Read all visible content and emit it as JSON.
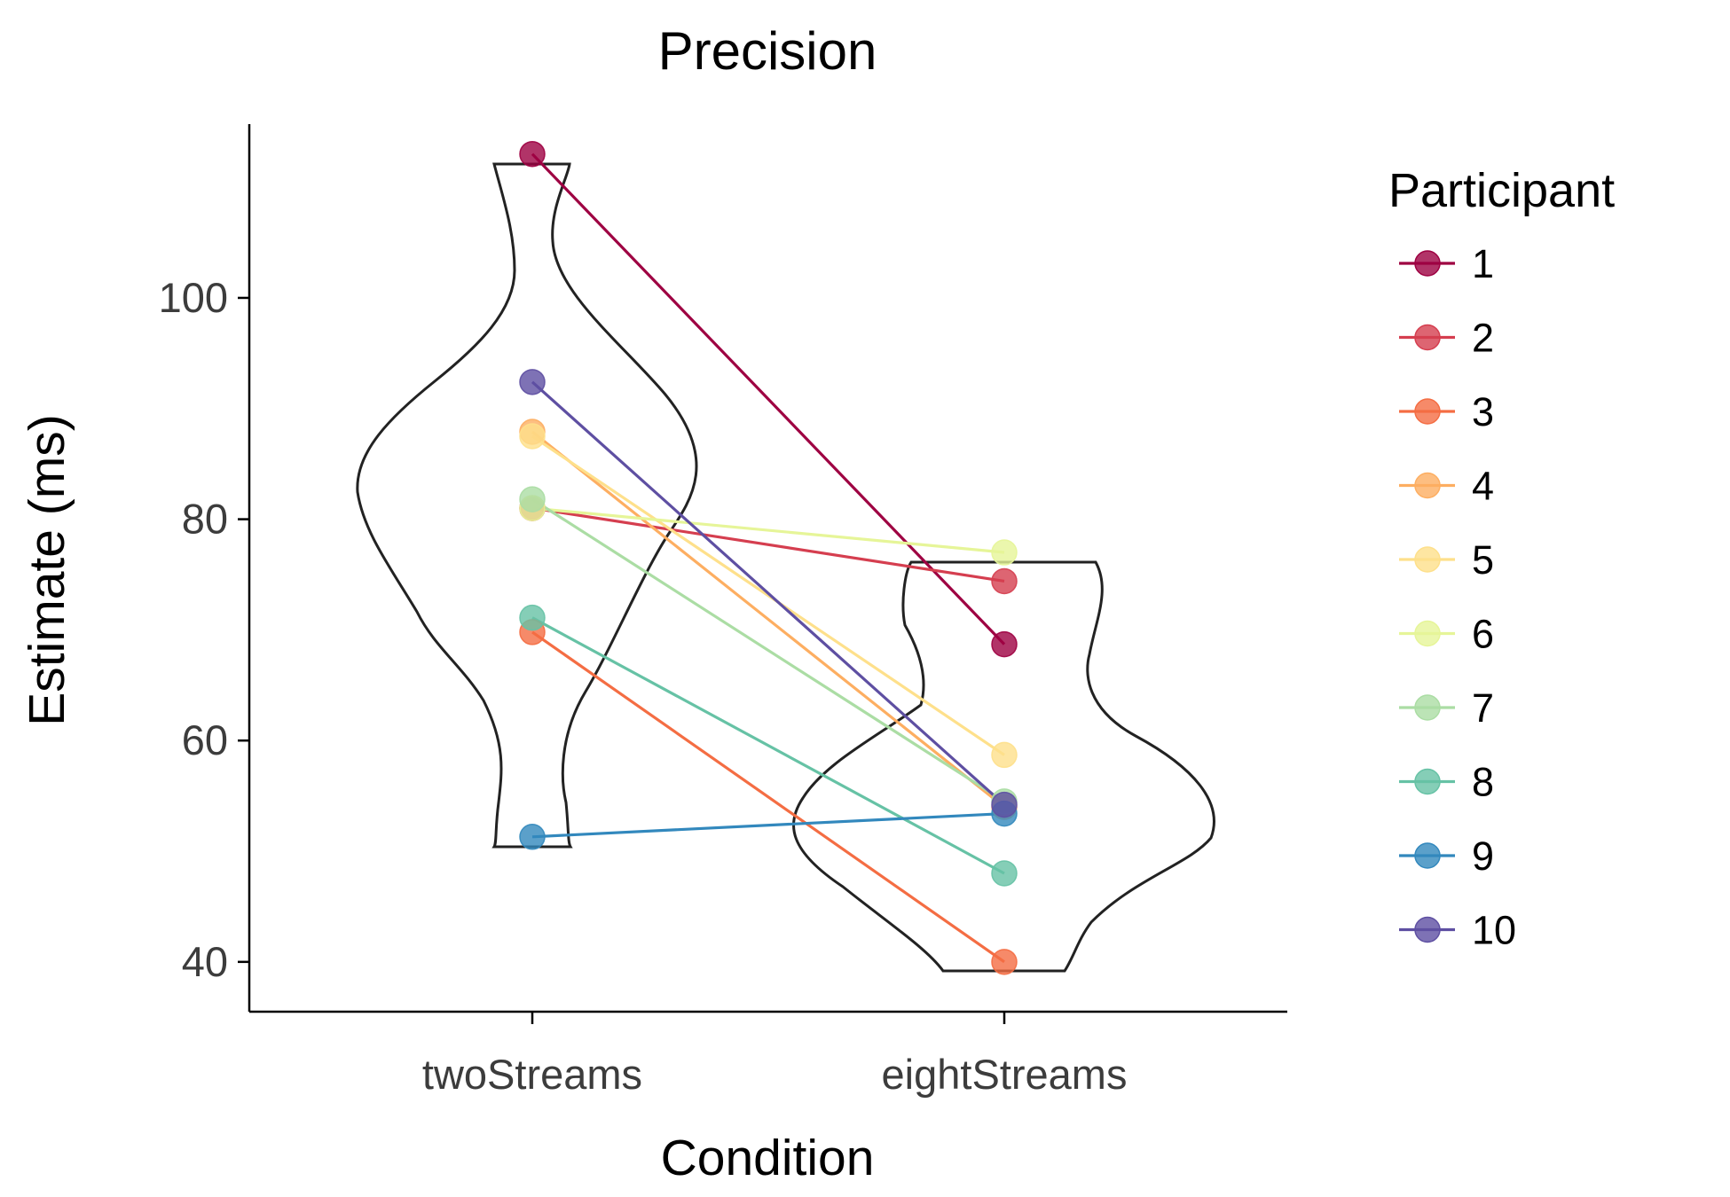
{
  "chart_data": {
    "type": "line",
    "subtype": "violin-with-paired-points",
    "title": "Precision",
    "xlabel": "Condition",
    "ylabel": "Estimate (ms)",
    "categories": [
      "twoStreams",
      "eightStreams"
    ],
    "ylim": [
      35.5,
      115.7
    ],
    "yticks": [
      40,
      60,
      80,
      100
    ],
    "grid": false,
    "legend": {
      "title": "Participant",
      "placement": "right"
    },
    "series": [
      {
        "name": "1",
        "color": "#9e0142",
        "values": [
          113.0,
          68.7
        ]
      },
      {
        "name": "2",
        "color": "#d53e4f",
        "values": [
          81.0,
          74.4
        ]
      },
      {
        "name": "3",
        "color": "#f46d43",
        "values": [
          69.8,
          40.0
        ]
      },
      {
        "name": "4",
        "color": "#fdae61",
        "values": [
          87.9,
          54.0
        ]
      },
      {
        "name": "5",
        "color": "#fee08b",
        "values": [
          87.5,
          58.7
        ]
      },
      {
        "name": "6",
        "color": "#e6f598",
        "values": [
          81.0,
          77.0
        ]
      },
      {
        "name": "7",
        "color": "#abdda4",
        "values": [
          81.8,
          54.5
        ]
      },
      {
        "name": "8",
        "color": "#66c2a5",
        "values": [
          71.1,
          48.0
        ]
      },
      {
        "name": "9",
        "color": "#3288bd",
        "values": [
          51.3,
          53.4
        ]
      },
      {
        "name": "10",
        "color": "#5e4fa2",
        "values": [
          92.4,
          54.2
        ]
      }
    ]
  }
}
